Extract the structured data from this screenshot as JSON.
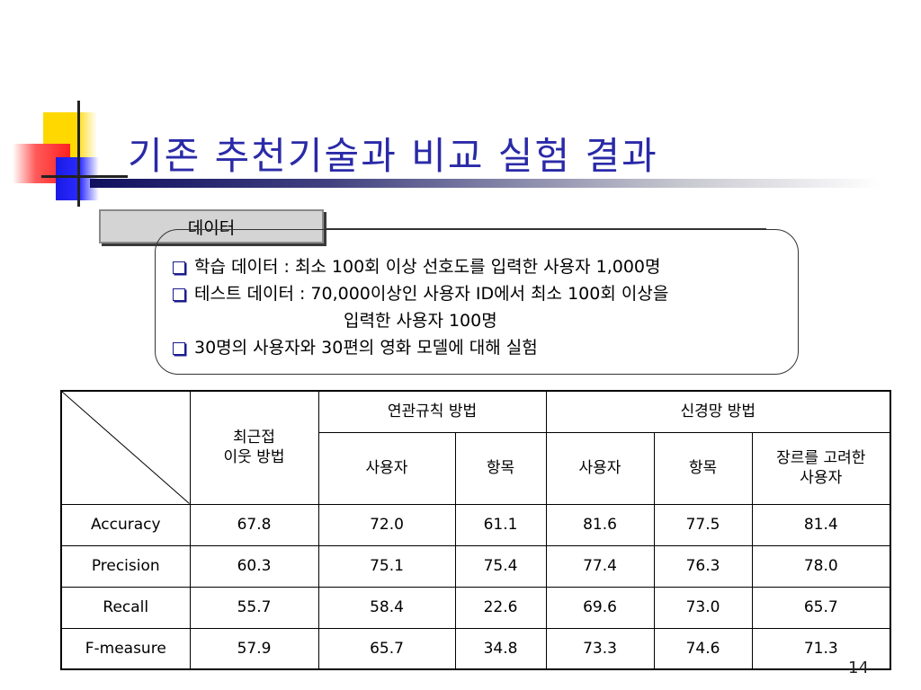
{
  "slide": {
    "title": "기존 추천기술과 비교 실험 결과",
    "page_number": "14"
  },
  "data_tab": {
    "label": "데이터"
  },
  "bullets": [
    {
      "text": "학습 데이터 : 최소 100회 이상 선호도를 입력한 사용자 1,000명",
      "continuation": ""
    },
    {
      "text": "테스트 데이터 : 70,000이상인 사용자 ID에서 최소 100회 이상을",
      "continuation": "입력한 사용자 100명"
    },
    {
      "text": "30명의 사용자와 30편의 영화 모델에 대해 실험",
      "continuation": ""
    }
  ],
  "table": {
    "header": {
      "col1": [
        "최근접",
        "이웃 방법"
      ],
      "group1": "연관규칙 방법",
      "group2": "신경망 방법",
      "sub": [
        "사용자",
        "항목",
        "사용자",
        "항목"
      ],
      "genre_user": [
        "장르를 고려한",
        "사용자"
      ]
    },
    "rows": [
      {
        "label": "Accuracy",
        "values": [
          "67.8",
          "72.0",
          "61.1",
          "81.6",
          "77.5",
          "81.4"
        ]
      },
      {
        "label": "Precision",
        "values": [
          "60.3",
          "75.1",
          "75.4",
          "77.4",
          "76.3",
          "78.0"
        ]
      },
      {
        "label": "Recall",
        "values": [
          "55.7",
          "58.4",
          "22.6",
          "69.6",
          "73.0",
          "65.7"
        ]
      },
      {
        "label": "F-measure",
        "values": [
          "57.9",
          "65.7",
          "34.8",
          "73.3",
          "74.6",
          "71.3"
        ]
      }
    ]
  },
  "colors": {
    "title": "#2a2aa8",
    "bullet_icon": "#1b1b8f"
  }
}
